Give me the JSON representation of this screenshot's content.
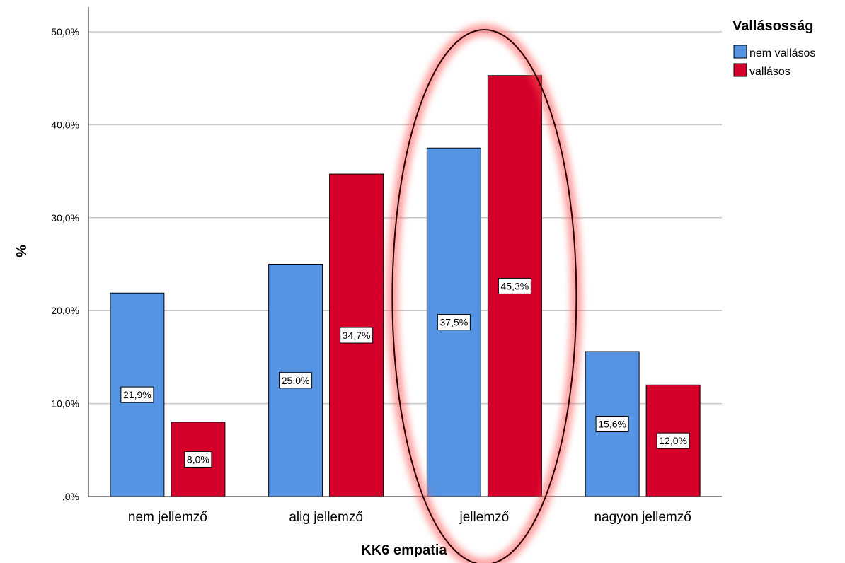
{
  "chart_data": {
    "type": "bar",
    "xlabel": "KK6 empatia",
    "ylabel": "%",
    "ylim": [
      0,
      50
    ],
    "yticks": [
      ",0%",
      "10,0%",
      "20,0%",
      "30,0%",
      "40,0%",
      "50,0%"
    ],
    "ytick_values": [
      0,
      10,
      20,
      30,
      40,
      50
    ],
    "grid": true,
    "categories": [
      "nem jellemző",
      "alig jellemző",
      "jellemző",
      "nagyon jellemző"
    ],
    "legend": {
      "title": "Vallásosság",
      "position": "top-right"
    },
    "series": [
      {
        "name": "nem vallásos",
        "color": "#5594e3",
        "values": [
          21.9,
          25.0,
          37.5,
          15.6
        ],
        "labels": [
          "21,9%",
          "25,0%",
          "37,5%",
          "15,6%"
        ]
      },
      {
        "name": "vallásos",
        "color": "#d4002a",
        "values": [
          8.0,
          34.7,
          45.3,
          12.0
        ],
        "labels": [
          "8,0%",
          "34,7%",
          "45,3%",
          "12,0%"
        ]
      }
    ],
    "annotation": {
      "type": "ellipse-highlight",
      "category": "jellemző",
      "color": "#ff5050"
    }
  }
}
